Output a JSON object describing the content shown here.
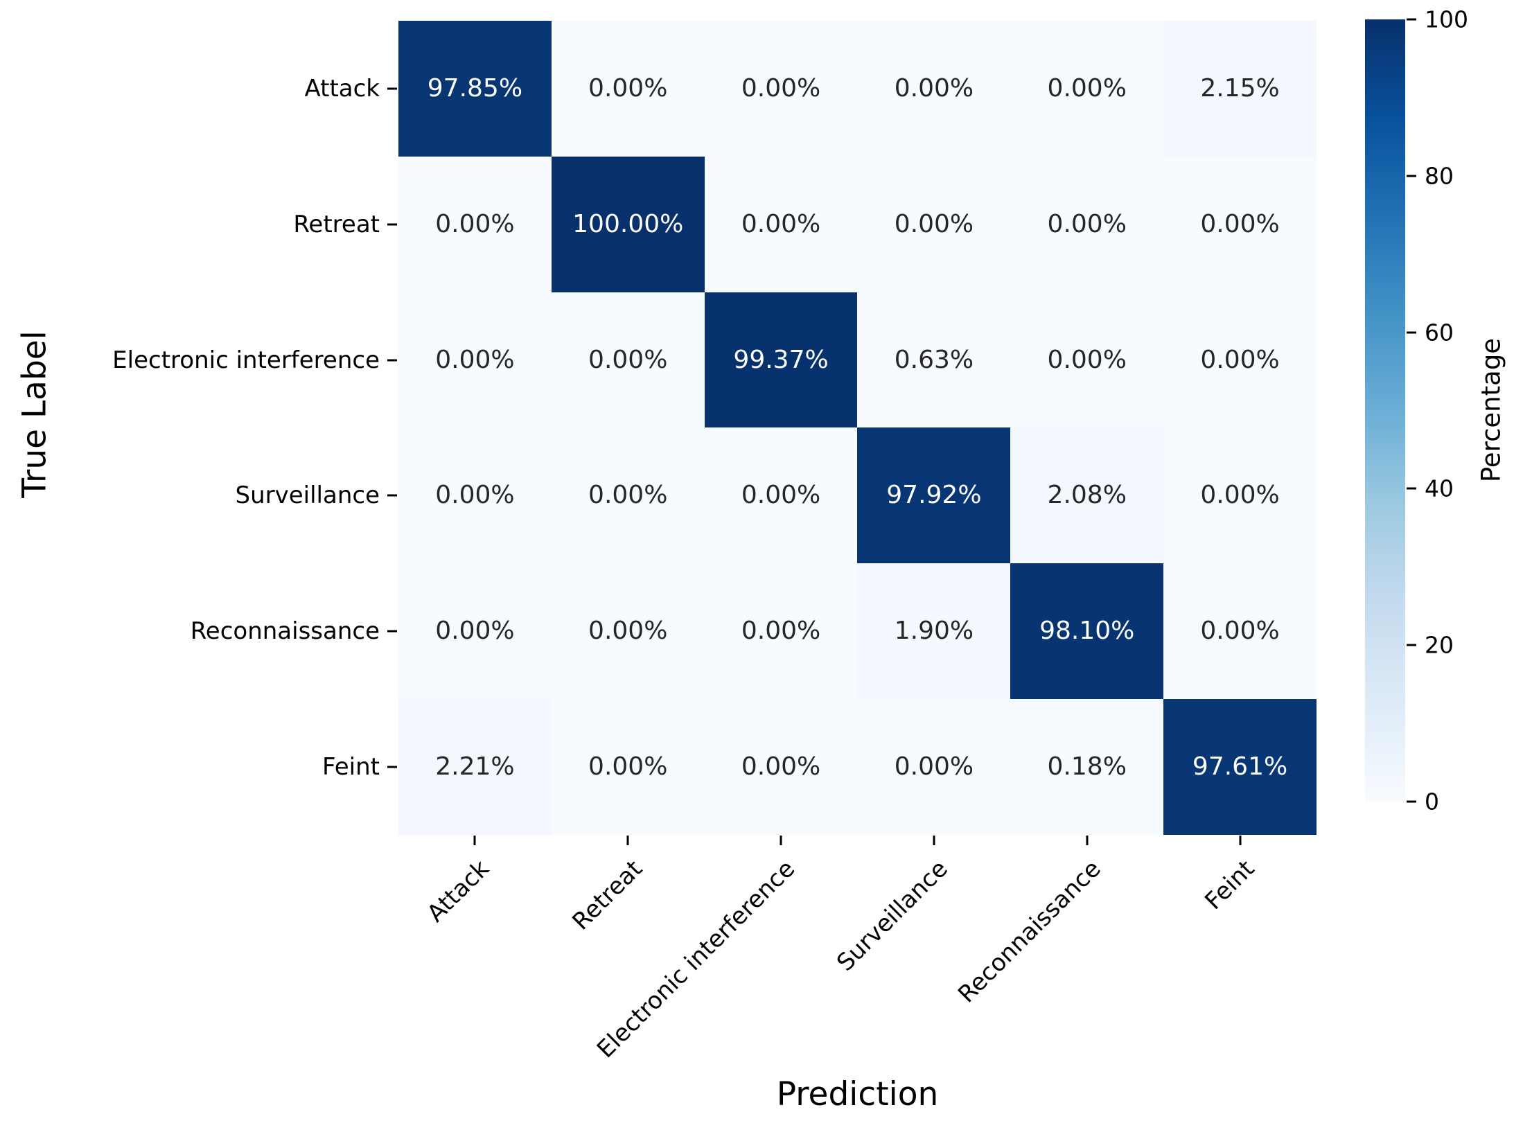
{
  "chart_data": {
    "type": "heatmap",
    "title": "",
    "xlabel": "Prediction",
    "ylabel": "True Label",
    "x_categories": [
      "Attack",
      "Retreat",
      "Electronic interference",
      "Surveillance",
      "Reconnaissance",
      "Feint"
    ],
    "y_categories": [
      "Attack",
      "Retreat",
      "Electronic interference",
      "Surveillance",
      "Reconnaissance",
      "Feint"
    ],
    "values_percent": [
      [
        97.85,
        0.0,
        0.0,
        0.0,
        0.0,
        2.15
      ],
      [
        0.0,
        100.0,
        0.0,
        0.0,
        0.0,
        0.0
      ],
      [
        0.0,
        0.0,
        99.37,
        0.63,
        0.0,
        0.0
      ],
      [
        0.0,
        0.0,
        0.0,
        97.92,
        2.08,
        0.0
      ],
      [
        0.0,
        0.0,
        0.0,
        1.9,
        98.1,
        0.0
      ],
      [
        2.21,
        0.0,
        0.0,
        0.0,
        0.18,
        97.61
      ]
    ],
    "cell_labels": [
      [
        "97.85%",
        "0.00%",
        "0.00%",
        "0.00%",
        "0.00%",
        "2.15%"
      ],
      [
        "0.00%",
        "100.00%",
        "0.00%",
        "0.00%",
        "0.00%",
        "0.00%"
      ],
      [
        "0.00%",
        "0.00%",
        "99.37%",
        "0.63%",
        "0.00%",
        "0.00%"
      ],
      [
        "0.00%",
        "0.00%",
        "0.00%",
        "97.92%",
        "2.08%",
        "0.00%"
      ],
      [
        "0.00%",
        "0.00%",
        "0.00%",
        "1.90%",
        "98.10%",
        "0.00%"
      ],
      [
        "2.21%",
        "0.00%",
        "0.00%",
        "0.00%",
        "0.18%",
        "97.61%"
      ]
    ],
    "colorbar": {
      "label": "Percentage",
      "min": 0,
      "max": 100,
      "ticks": [
        "0",
        "20",
        "40",
        "60",
        "80",
        "100"
      ]
    },
    "colormap": {
      "name": "Blues",
      "stops": [
        "#f7fbff",
        "#deebf7",
        "#c6dbef",
        "#9ecae1",
        "#6baed6",
        "#4292c6",
        "#2171b5",
        "#08519c",
        "#08306b"
      ]
    },
    "text_colors": {
      "on_light_cell": "#262626",
      "on_dark_cell": "#ffffff",
      "white_text_threshold_percent": 50
    },
    "layout_hints": {
      "grid": "off",
      "legend_position": "right-colorbar",
      "x_tick_rotation_deg": 45
    }
  }
}
